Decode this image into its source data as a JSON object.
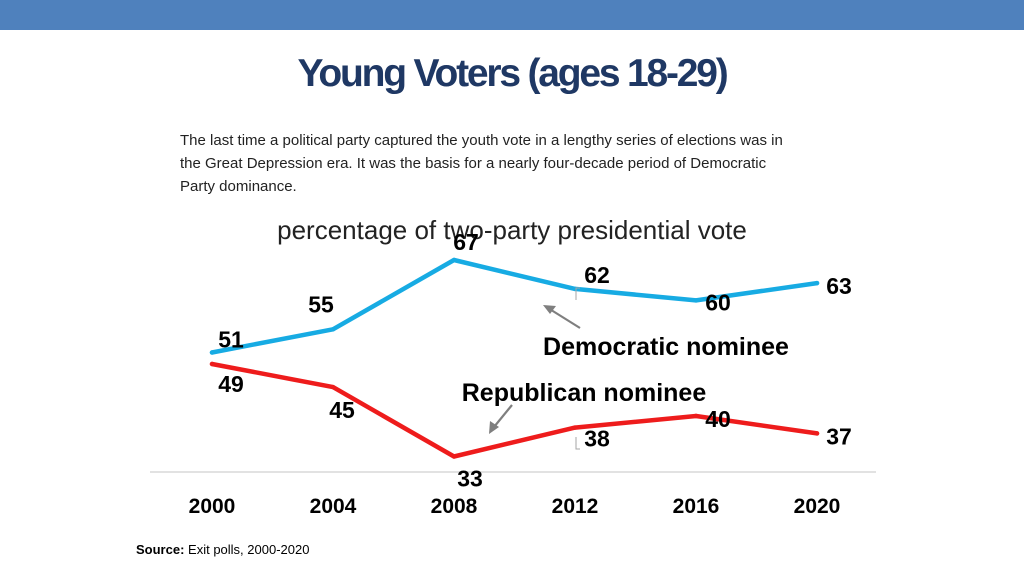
{
  "header": {
    "title": "Young Voters (ages 18-29)",
    "subtitle": "The last time a political party captured the youth vote in a lengthy series of elections was in the Great Depression era. It was the basis  for a nearly four-decade period of Democratic Party dominance."
  },
  "colors": {
    "top_band": "#4F81BD",
    "title": "#1F3864",
    "democratic": "#17ABE3",
    "republican": "#EE1C1C",
    "axis": "#D9D9D9",
    "arrow": "#7F7F7F"
  },
  "chart_data": {
    "type": "line",
    "title": "percentage of two-party presidential vote",
    "categories": [
      "2000",
      "2004",
      "2008",
      "2012",
      "2016",
      "2020"
    ],
    "ylim": [
      30,
      70
    ],
    "grid": false,
    "series": [
      {
        "name": "Democratic nominee",
        "values": [
          51,
          55,
          67,
          62,
          60,
          63
        ]
      },
      {
        "name": "Republican nominee",
        "values": [
          49,
          45,
          33,
          38,
          40,
          37
        ]
      }
    ],
    "annotations": [
      "Democratic nominee",
      "Republican nominee"
    ]
  },
  "footer": {
    "source_label": "Source:",
    "source_text": "Exit polls, 2000-2020"
  }
}
